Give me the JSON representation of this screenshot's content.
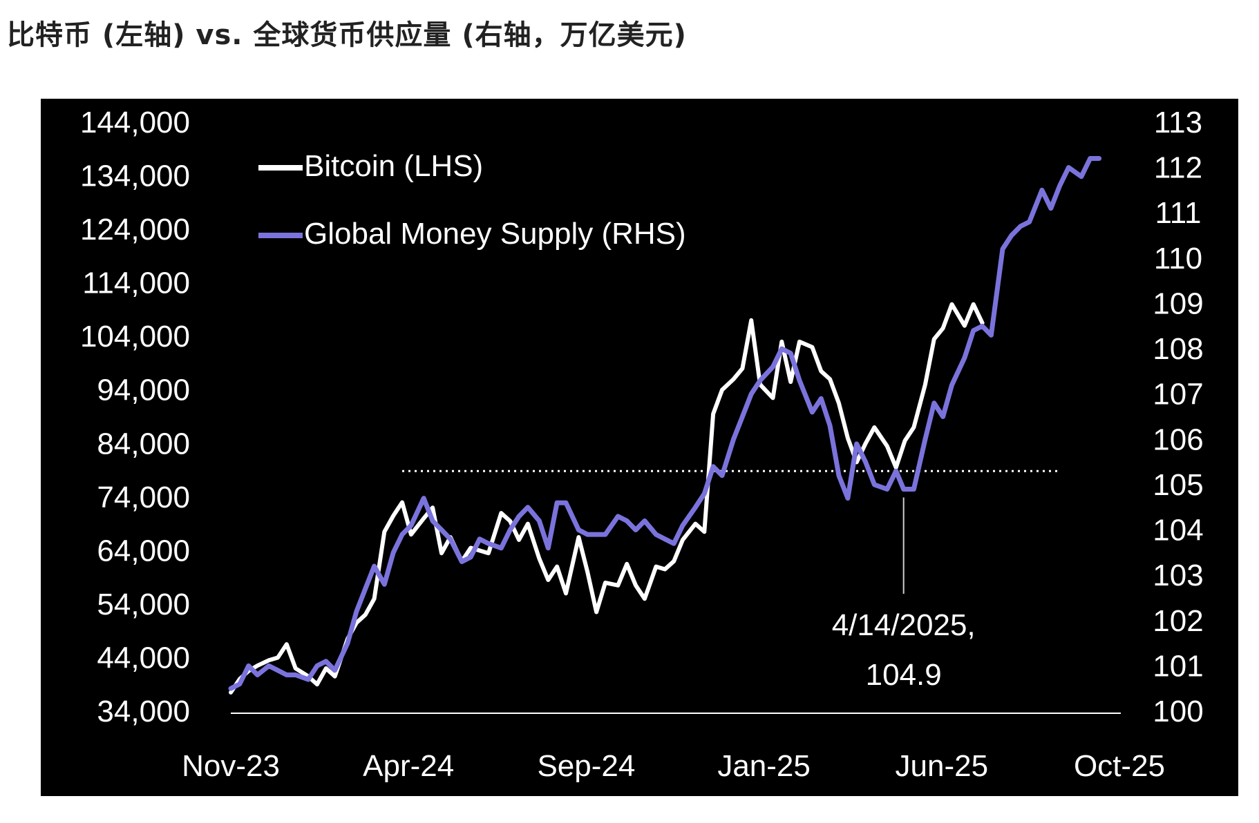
{
  "title": "比特币 (左轴) vs. 全球货币供应量 (右轴，万亿美元)",
  "colors": {
    "background": "#000000",
    "bitcoin": "#ffffff",
    "money_supply": "#7b73dc",
    "reference": "#ffffff"
  },
  "chart_data": {
    "type": "line",
    "title": "比特币 (左轴) vs. 全球货币供应量 (右轴，万亿美元)",
    "x_ticks": [
      "Nov-23",
      "Apr-24",
      "Sep-24",
      "Jan-25",
      "Jun-25",
      "Oct-25"
    ],
    "y_left": {
      "ticks": [
        "34,000",
        "44,000",
        "54,000",
        "64,000",
        "74,000",
        "84,000",
        "94,000",
        "104,000",
        "114,000",
        "124,000",
        "134,000",
        "144,000"
      ],
      "range": [
        34000,
        144000
      ]
    },
    "y_right": {
      "ticks": [
        "100",
        "101",
        "102",
        "103",
        "104",
        "105",
        "106",
        "107",
        "108",
        "109",
        "110",
        "111",
        "112",
        "113"
      ],
      "range": [
        100,
        113
      ]
    },
    "grid": false,
    "legend": {
      "position": "top-left",
      "entries": [
        "Bitcoin (LHS)",
        "Global Money Supply (RHS)"
      ]
    },
    "reference_line": {
      "axis": "right",
      "value": 105.3,
      "style": "dotted",
      "from": "2024-03-15",
      "to": "2025-08-15"
    },
    "annotation": {
      "line1": "4/14/2025,",
      "line2": "104.9",
      "x": "2025-04-14",
      "y": 104.9
    },
    "series": [
      {
        "name": "Bitcoin (LHS)",
        "axis": "left",
        "points": [
          [
            "2023-11-01",
            37500
          ],
          [
            "2023-11-08",
            40000
          ],
          [
            "2023-11-15",
            41500
          ],
          [
            "2023-11-22",
            42500
          ],
          [
            "2023-12-01",
            43500
          ],
          [
            "2023-12-08",
            44000
          ],
          [
            "2023-12-15",
            46500
          ],
          [
            "2023-12-22",
            42000
          ],
          [
            "2024-01-01",
            40500
          ],
          [
            "2024-01-08",
            39000
          ],
          [
            "2024-01-15",
            42000
          ],
          [
            "2024-01-22",
            40500
          ],
          [
            "2024-02-01",
            47500
          ],
          [
            "2024-02-08",
            50500
          ],
          [
            "2024-02-15",
            52000
          ],
          [
            "2024-02-22",
            55000
          ],
          [
            "2024-03-01",
            67500
          ],
          [
            "2024-03-08",
            70500
          ],
          [
            "2024-03-15",
            73000
          ],
          [
            "2024-03-22",
            67000
          ],
          [
            "2024-04-01",
            70000
          ],
          [
            "2024-04-08",
            72000
          ],
          [
            "2024-04-15",
            63500
          ],
          [
            "2024-04-22",
            66500
          ],
          [
            "2024-05-01",
            62000
          ],
          [
            "2024-05-08",
            64500
          ],
          [
            "2024-05-15",
            64000
          ],
          [
            "2024-05-22",
            63500
          ],
          [
            "2024-06-01",
            71000
          ],
          [
            "2024-06-08",
            69500
          ],
          [
            "2024-06-15",
            66000
          ],
          [
            "2024-06-22",
            69000
          ],
          [
            "2024-07-01",
            62500
          ],
          [
            "2024-07-08",
            58500
          ],
          [
            "2024-07-15",
            61000
          ],
          [
            "2024-07-22",
            56000
          ],
          [
            "2024-08-01",
            66500
          ],
          [
            "2024-08-08",
            60000
          ],
          [
            "2024-08-15",
            52500
          ],
          [
            "2024-08-22",
            58000
          ],
          [
            "2024-09-01",
            57500
          ],
          [
            "2024-09-08",
            61500
          ],
          [
            "2024-09-15",
            57500
          ],
          [
            "2024-09-22",
            55000
          ],
          [
            "2024-10-01",
            61000
          ],
          [
            "2024-10-08",
            60500
          ],
          [
            "2024-10-15",
            62000
          ],
          [
            "2024-10-22",
            66000
          ],
          [
            "2024-11-01",
            69000
          ],
          [
            "2024-11-08",
            67500
          ],
          [
            "2024-11-15",
            89500
          ],
          [
            "2024-11-22",
            94000
          ],
          [
            "2024-12-01",
            96000
          ],
          [
            "2024-12-08",
            98000
          ],
          [
            "2024-12-15",
            107000
          ],
          [
            "2024-12-22",
            95000
          ],
          [
            "2025-01-01",
            92500
          ],
          [
            "2025-01-08",
            103000
          ],
          [
            "2025-01-15",
            95500
          ],
          [
            "2025-01-22",
            103000
          ],
          [
            "2025-02-01",
            102000
          ],
          [
            "2025-02-08",
            97500
          ],
          [
            "2025-02-15",
            96000
          ],
          [
            "2025-02-22",
            91500
          ],
          [
            "2025-03-01",
            85000
          ],
          [
            "2025-03-08",
            80500
          ],
          [
            "2025-03-15",
            84000
          ],
          [
            "2025-03-22",
            87000
          ],
          [
            "2025-04-01",
            83500
          ],
          [
            "2025-04-08",
            79500
          ],
          [
            "2025-04-15",
            84500
          ],
          [
            "2025-04-22",
            87000
          ],
          [
            "2025-05-01",
            95000
          ],
          [
            "2025-05-08",
            103500
          ],
          [
            "2025-05-15",
            105500
          ],
          [
            "2025-05-22",
            110000
          ],
          [
            "2025-06-01",
            106000
          ],
          [
            "2025-06-08",
            110000
          ],
          [
            "2025-06-15",
            106500
          ]
        ]
      },
      {
        "name": "Global Money Supply (RHS)",
        "axis": "right",
        "points": [
          [
            "2023-11-01",
            100.5
          ],
          [
            "2023-11-08",
            100.6
          ],
          [
            "2023-11-15",
            101.0
          ],
          [
            "2023-11-22",
            100.8
          ],
          [
            "2023-12-01",
            101.0
          ],
          [
            "2023-12-08",
            100.9
          ],
          [
            "2023-12-15",
            100.8
          ],
          [
            "2023-12-22",
            100.8
          ],
          [
            "2024-01-01",
            100.7
          ],
          [
            "2024-01-08",
            101.0
          ],
          [
            "2024-01-15",
            101.1
          ],
          [
            "2024-01-22",
            100.9
          ],
          [
            "2024-02-01",
            101.5
          ],
          [
            "2024-02-08",
            102.2
          ],
          [
            "2024-02-15",
            102.7
          ],
          [
            "2024-02-22",
            103.2
          ],
          [
            "2024-03-01",
            102.8
          ],
          [
            "2024-03-08",
            103.5
          ],
          [
            "2024-03-15",
            103.9
          ],
          [
            "2024-03-22",
            104.1
          ],
          [
            "2024-04-01",
            104.7
          ],
          [
            "2024-04-08",
            104.2
          ],
          [
            "2024-04-15",
            104.0
          ],
          [
            "2024-04-22",
            103.8
          ],
          [
            "2024-05-01",
            103.3
          ],
          [
            "2024-05-08",
            103.4
          ],
          [
            "2024-05-15",
            103.8
          ],
          [
            "2024-05-22",
            103.7
          ],
          [
            "2024-06-01",
            103.6
          ],
          [
            "2024-06-08",
            104.0
          ],
          [
            "2024-06-15",
            104.3
          ],
          [
            "2024-06-22",
            104.5
          ],
          [
            "2024-07-01",
            104.2
          ],
          [
            "2024-07-08",
            103.6
          ],
          [
            "2024-07-15",
            104.6
          ],
          [
            "2024-07-22",
            104.6
          ],
          [
            "2024-08-01",
            104.0
          ],
          [
            "2024-08-08",
            103.9
          ],
          [
            "2024-08-15",
            103.9
          ],
          [
            "2024-08-22",
            103.9
          ],
          [
            "2024-09-01",
            104.3
          ],
          [
            "2024-09-08",
            104.2
          ],
          [
            "2024-09-15",
            104.0
          ],
          [
            "2024-09-22",
            104.2
          ],
          [
            "2024-10-01",
            103.9
          ],
          [
            "2024-10-08",
            103.8
          ],
          [
            "2024-10-15",
            103.7
          ],
          [
            "2024-10-22",
            104.1
          ],
          [
            "2024-11-01",
            104.5
          ],
          [
            "2024-11-08",
            104.8
          ],
          [
            "2024-11-15",
            105.4
          ],
          [
            "2024-11-22",
            105.2
          ],
          [
            "2024-12-01",
            106.0
          ],
          [
            "2024-12-08",
            106.5
          ],
          [
            "2024-12-15",
            107.0
          ],
          [
            "2024-12-22",
            107.3
          ],
          [
            "2025-01-01",
            107.6
          ],
          [
            "2025-01-08",
            108.0
          ],
          [
            "2025-01-15",
            107.9
          ],
          [
            "2025-01-22",
            107.3
          ],
          [
            "2025-02-01",
            106.6
          ],
          [
            "2025-02-08",
            106.9
          ],
          [
            "2025-02-15",
            106.3
          ],
          [
            "2025-02-22",
            105.2
          ],
          [
            "2025-03-01",
            104.7
          ],
          [
            "2025-03-08",
            105.9
          ],
          [
            "2025-03-15",
            105.5
          ],
          [
            "2025-03-22",
            105.0
          ],
          [
            "2025-04-01",
            104.9
          ],
          [
            "2025-04-08",
            105.3
          ],
          [
            "2025-04-14",
            104.9
          ],
          [
            "2025-04-22",
            104.9
          ],
          [
            "2025-05-01",
            106.0
          ],
          [
            "2025-05-08",
            106.8
          ],
          [
            "2025-05-15",
            106.5
          ],
          [
            "2025-05-22",
            107.2
          ],
          [
            "2025-06-01",
            107.8
          ],
          [
            "2025-06-08",
            108.4
          ],
          [
            "2025-06-15",
            108.5
          ],
          [
            "2025-06-22",
            108.3
          ],
          [
            "2025-07-01",
            110.2
          ],
          [
            "2025-07-08",
            110.5
          ],
          [
            "2025-07-15",
            110.7
          ],
          [
            "2025-07-22",
            110.8
          ],
          [
            "2025-08-01",
            111.5
          ],
          [
            "2025-08-08",
            111.1
          ],
          [
            "2025-08-15",
            111.6
          ],
          [
            "2025-08-22",
            112.0
          ],
          [
            "2025-09-01",
            111.8
          ],
          [
            "2025-09-08",
            112.2
          ],
          [
            "2025-09-15",
            112.2
          ]
        ]
      }
    ]
  }
}
